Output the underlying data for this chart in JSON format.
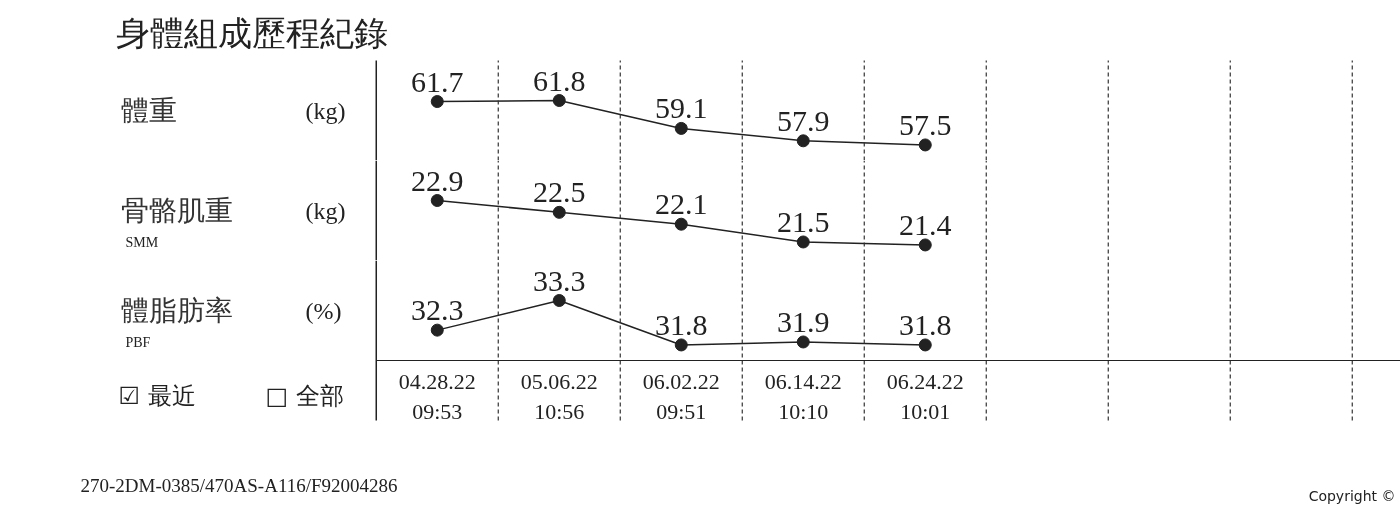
{
  "chart_data": [
    {
      "type": "line",
      "ylabel": "體重",
      "annotations": [
        "身體組成歷程紀錄",
        "(kg)"
      ],
      "categories": [
        null,
        null,
        null,
        null,
        null,
        null,
        null,
        null
      ],
      "values": [
        61.7,
        61.8,
        59.1,
        57.9,
        57.5,
        null,
        null,
        null
      ],
      "color": "#222222",
      "marker": "circle",
      "data_labels": true,
      "grid": "x",
      "tick_labels": false
    },
    {
      "type": "line",
      "ylabel": "骨骼肌重",
      "annotations": [
        "SMM",
        "(kg)"
      ],
      "categories": [
        null,
        null,
        null,
        null,
        null,
        null,
        null,
        null
      ],
      "values": [
        22.9,
        22.5,
        22.1,
        21.5,
        21.4,
        null,
        null,
        null
      ],
      "color": "#222222",
      "marker": "circle",
      "data_labels": true,
      "grid": "x",
      "tick_labels": false
    },
    {
      "type": "line",
      "ylabel": "體脂肪率",
      "annotations": [
        "PBF",
        "(%)",
        "☑ 最近",
        "□ 全部",
        "270-2DM-0385/470AS-A116/F92004286",
        "Copyright ©"
      ],
      "categories": [
        "04.28.22\n09:53",
        "05.06.22\n10:56",
        "06.02.22\n09:51",
        "06.14.22\n10:10",
        "06.24.22\n10:01",
        null,
        null,
        null
      ],
      "values": [
        32.3,
        33.3,
        31.8,
        31.9,
        31.8,
        null,
        null,
        null
      ],
      "color": "#222222",
      "marker": "circle",
      "data_labels": true,
      "grid": "x",
      "tick_labels": "x"
    }
  ]
}
